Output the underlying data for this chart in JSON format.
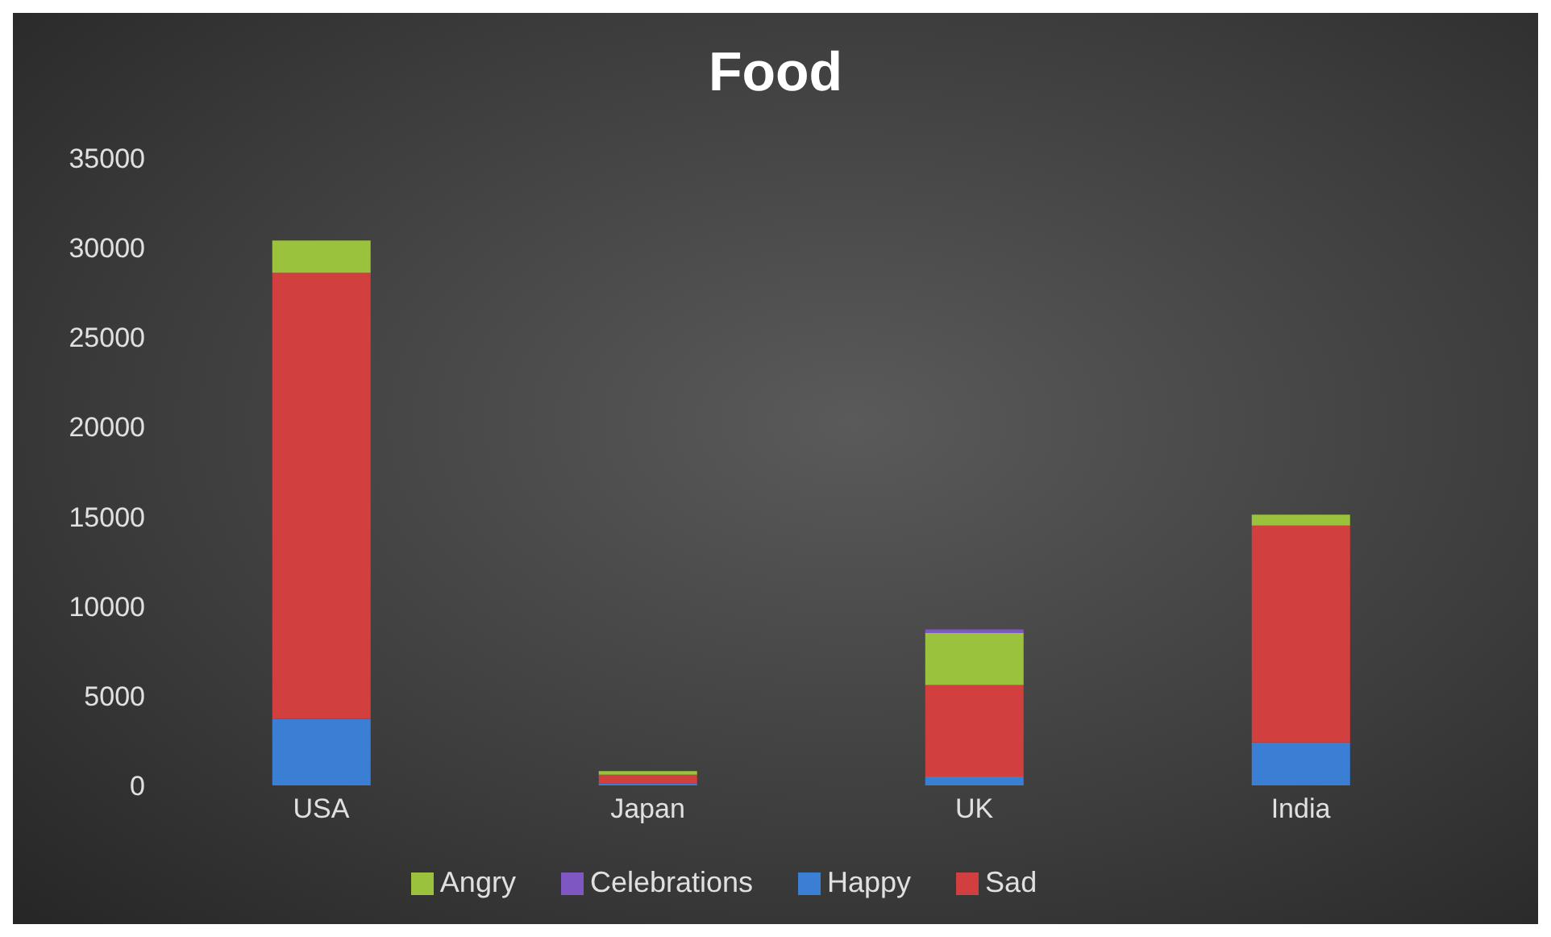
{
  "chart_data": {
    "type": "bar",
    "title": "Food",
    "stacked": true,
    "categories": [
      "USA",
      "Japan",
      "UK",
      "India"
    ],
    "series": [
      {
        "name": "Happy",
        "color": "#3b7fd4",
        "values": [
          3700,
          100,
          500,
          2400
        ]
      },
      {
        "name": "Sad",
        "color": "#d23f3f",
        "values": [
          24900,
          500,
          5100,
          12100
        ]
      },
      {
        "name": "Angry",
        "color": "#9ac23c",
        "values": [
          1800,
          200,
          2900,
          600
        ]
      },
      {
        "name": "Celebrations",
        "color": "#7e57c2",
        "values": [
          0,
          0,
          200,
          0
        ]
      }
    ],
    "ylim": [
      0,
      35000
    ],
    "yticks": [
      0,
      5000,
      10000,
      15000,
      20000,
      25000,
      30000,
      35000
    ],
    "legend": "bottom"
  }
}
